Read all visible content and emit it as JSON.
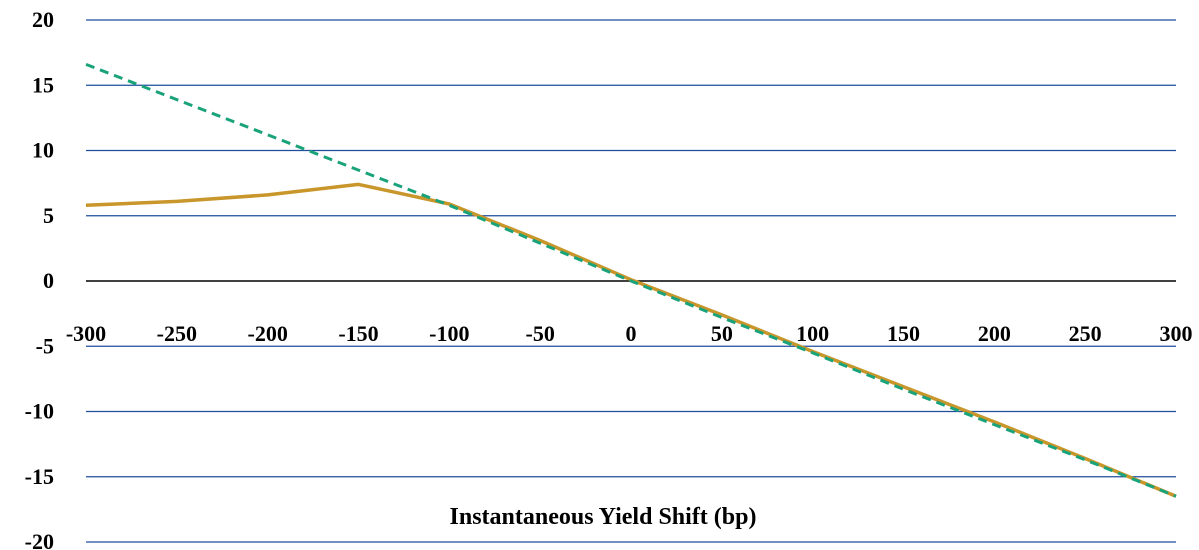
{
  "chart_data": {
    "type": "line",
    "title": "",
    "xlabel": "Instantaneous Yield Shift (bp)",
    "ylabel": "",
    "xlim": [
      -300,
      300
    ],
    "ylim": [
      -20,
      20
    ],
    "x_ticks": [
      -300,
      -250,
      -200,
      -150,
      -100,
      -50,
      0,
      50,
      100,
      150,
      200,
      250,
      300
    ],
    "y_ticks": [
      20,
      15,
      10,
      5,
      0,
      -5,
      -10,
      -15,
      -20
    ],
    "grid": true,
    "legend": "none",
    "colors": {
      "grid": "#1f4e9c",
      "zero_line": "#000000",
      "solid": "#c8962a",
      "dashed": "#1aa37a"
    },
    "series": [
      {
        "style": "solid",
        "x": [
          -300,
          -250,
          -200,
          -150,
          -100,
          -50,
          0,
          50,
          100,
          150,
          200,
          250,
          300
        ],
        "y": [
          5.8,
          6.1,
          6.6,
          7.4,
          5.9,
          3.1,
          0.1,
          -2.6,
          -5.4,
          -8.1,
          -10.8,
          -13.6,
          -16.5
        ]
      },
      {
        "style": "dashed",
        "x": [
          -300,
          -250,
          -200,
          -150,
          -100,
          -50,
          0,
          50,
          100,
          150,
          200,
          250,
          300
        ],
        "y": [
          16.6,
          13.9,
          11.2,
          8.5,
          5.8,
          2.9,
          0.0,
          -2.8,
          -5.5,
          -8.3,
          -11.0,
          -13.7,
          -16.5
        ]
      }
    ]
  }
}
